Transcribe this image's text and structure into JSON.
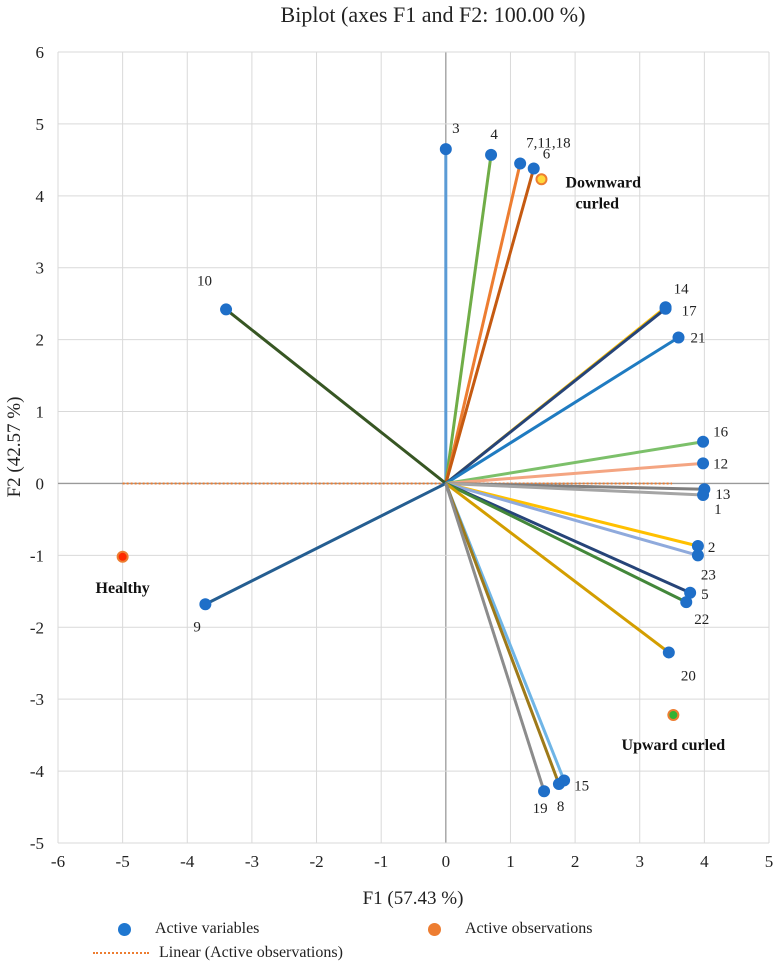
{
  "chart_data": {
    "type": "scatter",
    "subtype": "biplot",
    "title": "Biplot (axes F1 and F2: 100.00 %)",
    "xlabel": "F1 (57.43 %)",
    "ylabel": "F2 (42.57 %)",
    "xlim": [
      -6,
      5
    ],
    "ylim": [
      -5,
      6
    ],
    "xticks": [
      "-6",
      "-5",
      "-4",
      "-3",
      "-2",
      "-1",
      "0",
      "1",
      "2",
      "3",
      "4",
      "5"
    ],
    "yticks": [
      "-5",
      "-4",
      "-3",
      "-2",
      "-1",
      "0",
      "1",
      "2",
      "3",
      "4",
      "5",
      "6"
    ],
    "grid": true,
    "variables": [
      {
        "label": "3",
        "x": 0.0,
        "y": 4.65,
        "color": "#5B9BD5"
      },
      {
        "label": "4",
        "x": 0.7,
        "y": 4.57,
        "color": "#70AD47"
      },
      {
        "label": "7,11,18",
        "x": 1.15,
        "y": 4.45,
        "color": "#ED7D31"
      },
      {
        "label": "6",
        "x": 1.36,
        "y": 4.38,
        "color": "#C55A11"
      },
      {
        "label": "10",
        "x": -3.4,
        "y": 2.42,
        "color": "#375623"
      },
      {
        "label": "14",
        "x": 3.4,
        "y": 2.45,
        "color": "#FFC000"
      },
      {
        "label": "17",
        "x": 3.4,
        "y": 2.43,
        "color": "#264478"
      },
      {
        "label": "21",
        "x": 3.6,
        "y": 2.03,
        "color": "#1F7BC1"
      },
      {
        "label": "16",
        "x": 3.98,
        "y": 0.58,
        "color": "#7CC06A"
      },
      {
        "label": "12",
        "x": 3.98,
        "y": 0.28,
        "color": "#F4A582"
      },
      {
        "label": "13",
        "x": 4.0,
        "y": -0.08,
        "color": "#7F7F7F"
      },
      {
        "label": "1",
        "x": 3.98,
        "y": -0.16,
        "color": "#A5A5A5"
      },
      {
        "label": "2",
        "x": 3.9,
        "y": -0.87,
        "color": "#FFC000"
      },
      {
        "label": "23",
        "x": 3.9,
        "y": -1.0,
        "color": "#8FAADC"
      },
      {
        "label": "5",
        "x": 3.78,
        "y": -1.52,
        "color": "#264478"
      },
      {
        "label": "22",
        "x": 3.72,
        "y": -1.65,
        "color": "#43873A"
      },
      {
        "label": "20",
        "x": 3.45,
        "y": -2.35,
        "color": "#D39E00"
      },
      {
        "label": "9",
        "x": -3.72,
        "y": -1.68,
        "color": "#255E91"
      },
      {
        "label": "15",
        "x": 1.83,
        "y": -4.13,
        "color": "#6FB5E6"
      },
      {
        "label": "8",
        "x": 1.75,
        "y": -4.18,
        "color": "#9E7A1A"
      },
      {
        "label": "19",
        "x": 1.52,
        "y": -4.28,
        "color": "#8C8C8C"
      }
    ],
    "observations": [
      {
        "label": "Downward curled",
        "label_lines": [
          "Downward",
          "curled"
        ],
        "x": 1.48,
        "y": 4.23,
        "fill": "#FFD93A",
        "stroke": "#ED7D31"
      },
      {
        "label": "Healthy",
        "label_lines": [
          "Healthy"
        ],
        "x": -5.0,
        "y": -1.02,
        "fill": "#FF2A00",
        "stroke": "#ED7D31"
      },
      {
        "label": "Upward curled",
        "label_lines": [
          "Upward curled"
        ],
        "x": 3.52,
        "y": -3.22,
        "fill": "#33B233",
        "stroke": "#ED7D31"
      }
    ],
    "trendline": {
      "label": "Linear (Active observations)",
      "x": [
        -5.0,
        3.5
      ],
      "y": [
        0.0,
        0.0
      ],
      "color": "#ED7D31"
    },
    "legend": [
      {
        "label": "Active variables",
        "color": "#1F77D0"
      },
      {
        "label": "Active observations",
        "color": "#ED7D31"
      },
      {
        "label": "Linear (Active observations)",
        "color": "#ED7D31"
      }
    ],
    "legend_position": "bottom"
  }
}
